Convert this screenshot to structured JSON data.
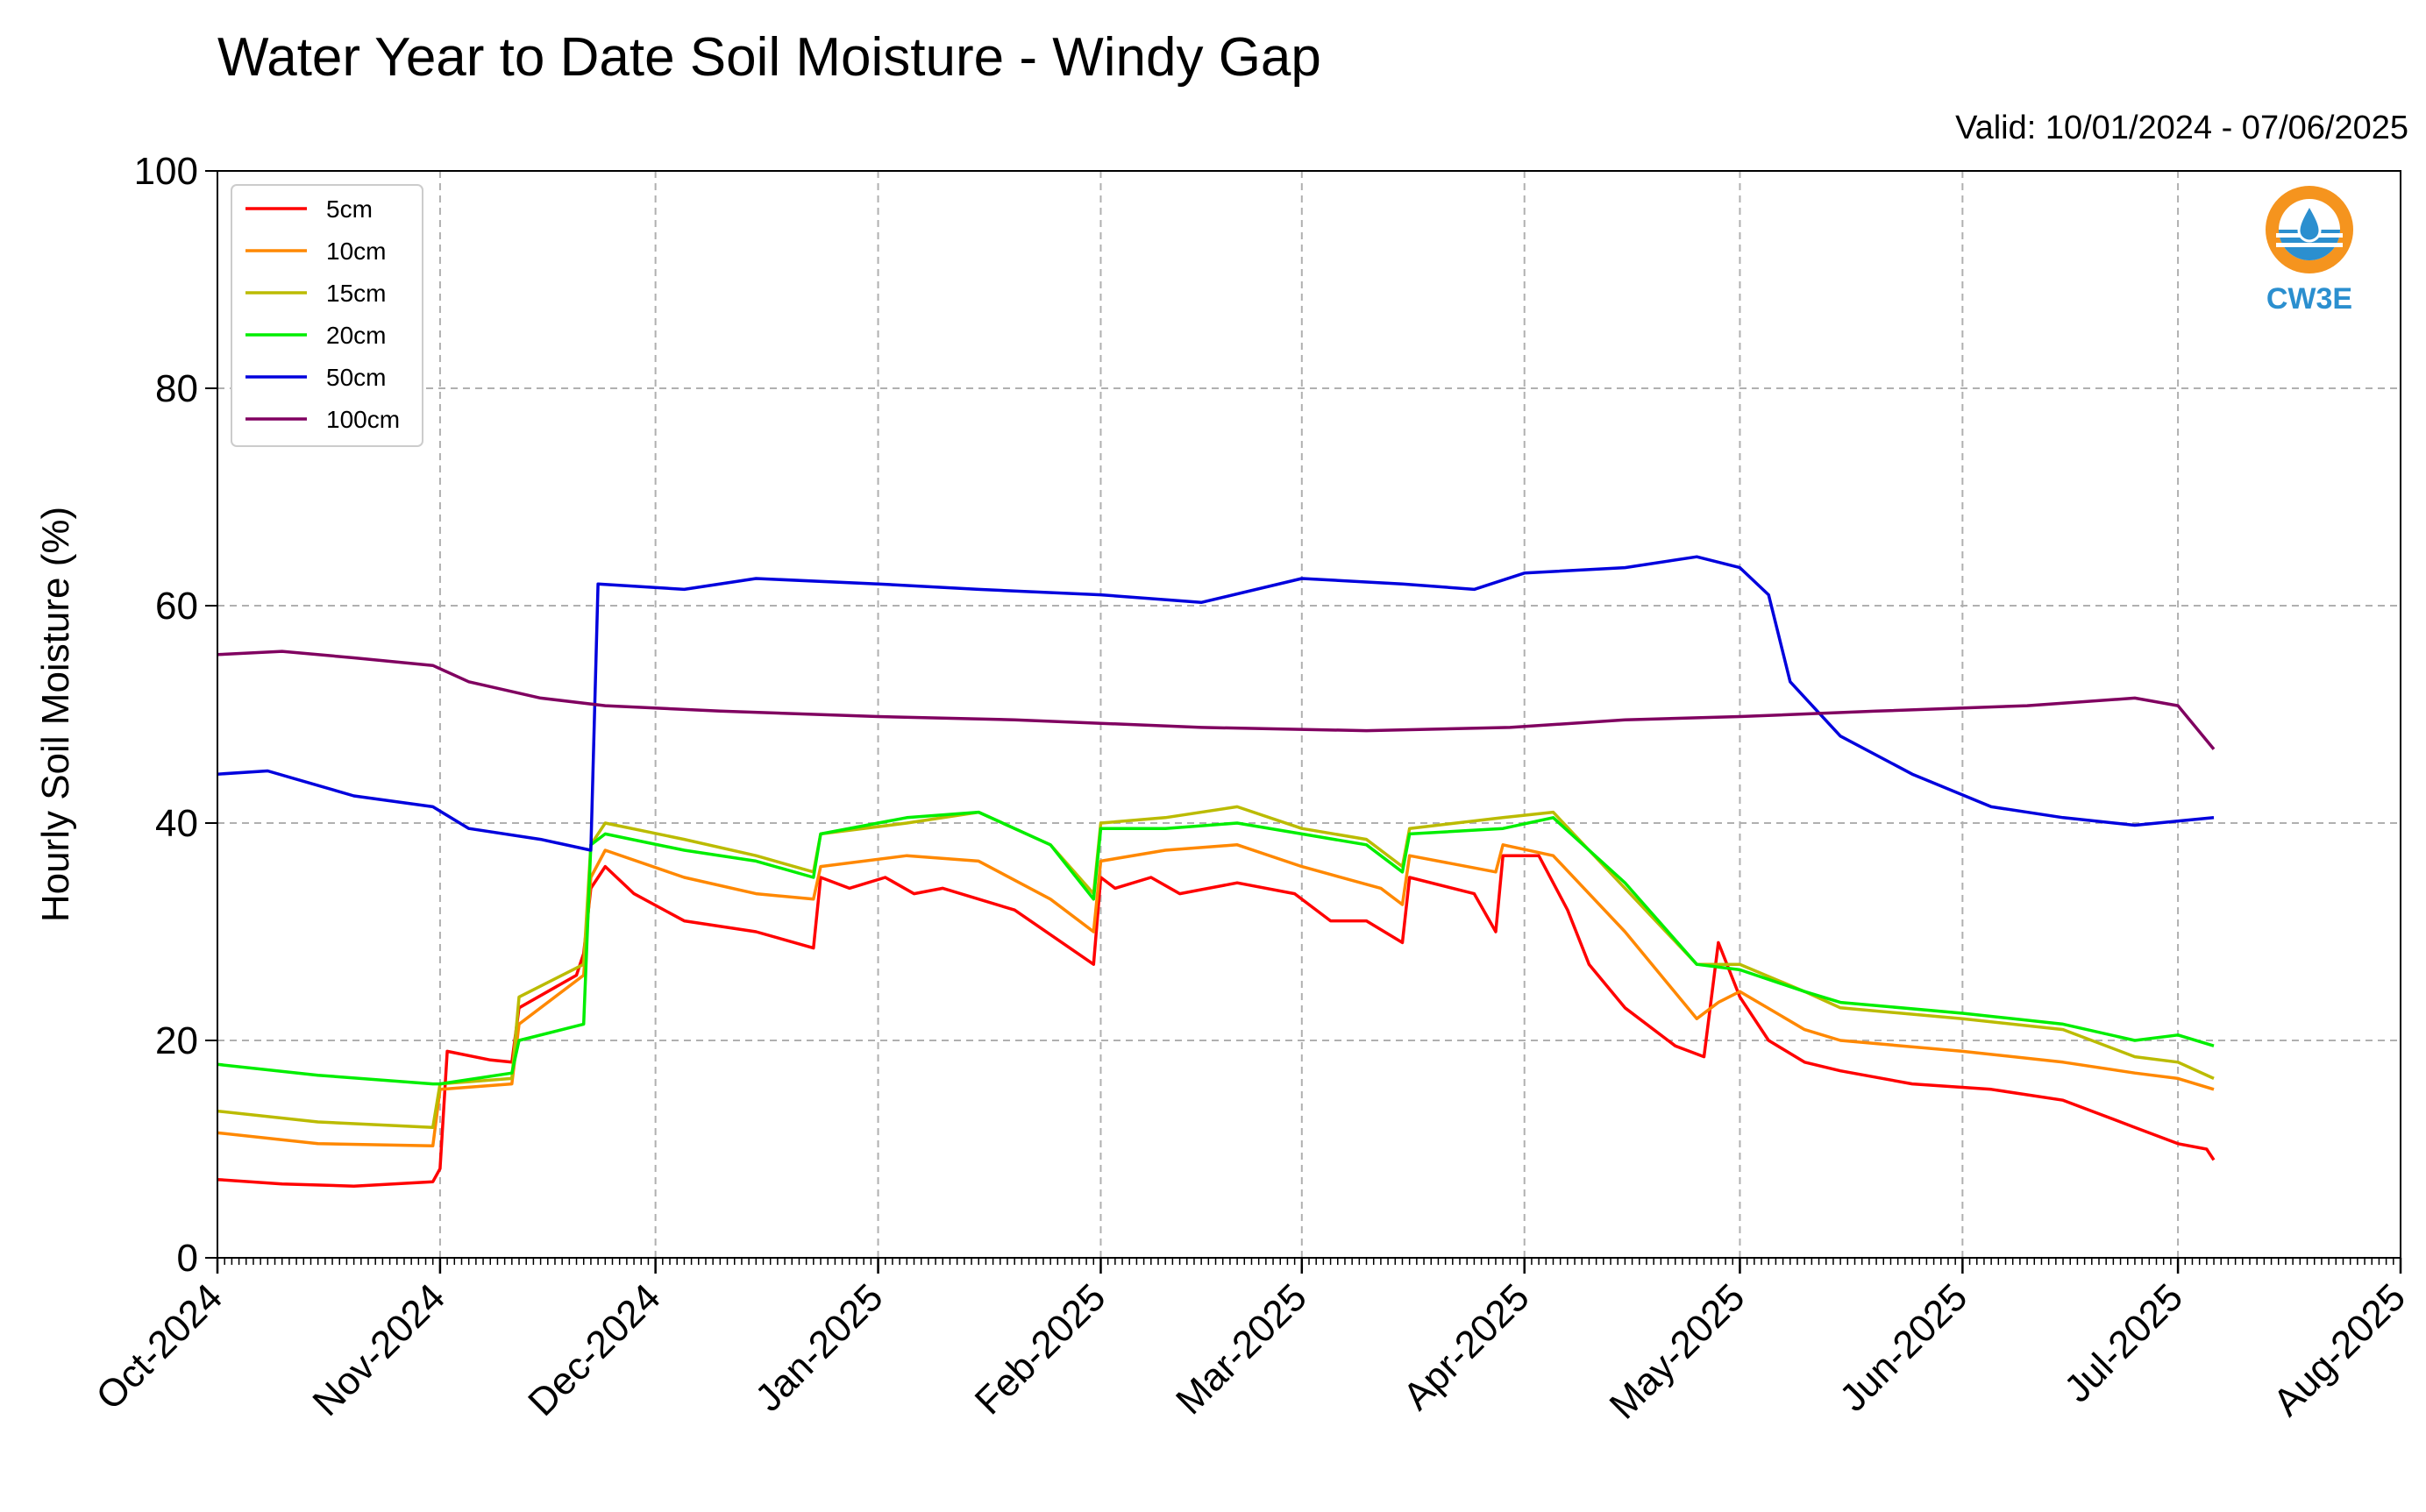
{
  "title": "Water Year to Date Soil Moisture - Windy Gap",
  "valid": "Valid: 10/01/2024 - 07/06/2025",
  "logo": {
    "text": "CW3E",
    "colors": {
      "orange": "#f5941e",
      "blue": "#2b8fcf"
    }
  },
  "chart_data": {
    "type": "line",
    "title": "Water Year to Date Soil Moisture - Windy Gap",
    "xlabel": "",
    "ylabel": "Hourly Soil Moisture (%)",
    "xlim": [
      "2024-10-01",
      "2025-08-01"
    ],
    "ylim": [
      0,
      100
    ],
    "yticks": [
      0,
      20,
      40,
      60,
      80,
      100
    ],
    "xticks": [
      {
        "date": "2024-10-01",
        "label": "Oct-2024"
      },
      {
        "date": "2024-11-01",
        "label": "Nov-2024"
      },
      {
        "date": "2024-12-01",
        "label": "Dec-2024"
      },
      {
        "date": "2025-01-01",
        "label": "Jan-2025"
      },
      {
        "date": "2025-02-01",
        "label": "Feb-2025"
      },
      {
        "date": "2025-03-01",
        "label": "Mar-2025"
      },
      {
        "date": "2025-04-01",
        "label": "Apr-2025"
      },
      {
        "date": "2025-05-01",
        "label": "May-2025"
      },
      {
        "date": "2025-06-01",
        "label": "Jun-2025"
      },
      {
        "date": "2025-07-01",
        "label": "Jul-2025"
      },
      {
        "date": "2025-08-01",
        "label": "Aug-2025"
      }
    ],
    "grid": true,
    "legend_position": "top-left",
    "series": [
      {
        "name": "5cm",
        "color": "#ff0000",
        "points": [
          [
            "2024-10-01",
            7.2
          ],
          [
            "2024-10-10",
            6.8
          ],
          [
            "2024-10-20",
            6.6
          ],
          [
            "2024-10-31",
            7.0
          ],
          [
            "2024-11-01",
            8.2
          ],
          [
            "2024-11-02",
            19.0
          ],
          [
            "2024-11-08",
            18.2
          ],
          [
            "2024-11-11",
            18.0
          ],
          [
            "2024-11-12",
            23.0
          ],
          [
            "2024-11-20",
            26.0
          ],
          [
            "2024-11-21",
            28.0
          ],
          [
            "2024-11-22",
            34.0
          ],
          [
            "2024-11-24",
            36.0
          ],
          [
            "2024-11-28",
            33.5
          ],
          [
            "2024-12-05",
            31.0
          ],
          [
            "2024-12-15",
            30.0
          ],
          [
            "2024-12-23",
            28.5
          ],
          [
            "2024-12-24",
            35.0
          ],
          [
            "2024-12-28",
            34.0
          ],
          [
            "2025-01-02",
            35.0
          ],
          [
            "2025-01-06",
            33.5
          ],
          [
            "2025-01-10",
            34.0
          ],
          [
            "2025-01-20",
            32.0
          ],
          [
            "2025-01-31",
            27.0
          ],
          [
            "2025-02-01",
            35.0
          ],
          [
            "2025-02-03",
            34.0
          ],
          [
            "2025-02-08",
            35.0
          ],
          [
            "2025-02-12",
            33.5
          ],
          [
            "2025-02-20",
            34.5
          ],
          [
            "2025-02-28",
            33.5
          ],
          [
            "2025-03-05",
            31.0
          ],
          [
            "2025-03-10",
            31.0
          ],
          [
            "2025-03-15",
            29.0
          ],
          [
            "2025-03-16",
            35.0
          ],
          [
            "2025-03-25",
            33.5
          ],
          [
            "2025-03-28",
            30.0
          ],
          [
            "2025-03-29",
            37.0
          ],
          [
            "2025-04-03",
            37.0
          ],
          [
            "2025-04-07",
            32.0
          ],
          [
            "2025-04-10",
            27.0
          ],
          [
            "2025-04-15",
            23.0
          ],
          [
            "2025-04-22",
            19.5
          ],
          [
            "2025-04-26",
            18.5
          ],
          [
            "2025-04-28",
            29.0
          ],
          [
            "2025-05-01",
            24.0
          ],
          [
            "2025-05-05",
            20.0
          ],
          [
            "2025-05-10",
            18.0
          ],
          [
            "2025-05-15",
            17.2
          ],
          [
            "2025-05-25",
            16.0
          ],
          [
            "2025-06-05",
            15.5
          ],
          [
            "2025-06-15",
            14.5
          ],
          [
            "2025-06-25",
            12.0
          ],
          [
            "2025-07-01",
            10.5
          ],
          [
            "2025-07-05",
            10.0
          ],
          [
            "2025-07-06",
            9.0
          ]
        ]
      },
      {
        "name": "10cm",
        "color": "#ff8800",
        "points": [
          [
            "2024-10-01",
            11.5
          ],
          [
            "2024-10-15",
            10.5
          ],
          [
            "2024-10-31",
            10.3
          ],
          [
            "2024-11-01",
            15.5
          ],
          [
            "2024-11-11",
            16.0
          ],
          [
            "2024-11-12",
            21.5
          ],
          [
            "2024-11-21",
            26.0
          ],
          [
            "2024-11-22",
            35.0
          ],
          [
            "2024-11-24",
            37.5
          ],
          [
            "2024-12-05",
            35.0
          ],
          [
            "2024-12-15",
            33.5
          ],
          [
            "2024-12-23",
            33.0
          ],
          [
            "2024-12-24",
            36.0
          ],
          [
            "2025-01-05",
            37.0
          ],
          [
            "2025-01-15",
            36.5
          ],
          [
            "2025-01-25",
            33.0
          ],
          [
            "2025-01-31",
            30.0
          ],
          [
            "2025-02-01",
            36.5
          ],
          [
            "2025-02-10",
            37.5
          ],
          [
            "2025-02-20",
            38.0
          ],
          [
            "2025-03-01",
            36.0
          ],
          [
            "2025-03-12",
            34.0
          ],
          [
            "2025-03-15",
            32.5
          ],
          [
            "2025-03-16",
            37.0
          ],
          [
            "2025-03-28",
            35.5
          ],
          [
            "2025-03-29",
            38.0
          ],
          [
            "2025-04-05",
            37.0
          ],
          [
            "2025-04-15",
            30.0
          ],
          [
            "2025-04-25",
            22.0
          ],
          [
            "2025-04-28",
            23.5
          ],
          [
            "2025-05-01",
            24.5
          ],
          [
            "2025-05-10",
            21.0
          ],
          [
            "2025-05-15",
            20.0
          ],
          [
            "2025-06-01",
            19.0
          ],
          [
            "2025-06-15",
            18.0
          ],
          [
            "2025-06-25",
            17.0
          ],
          [
            "2025-07-01",
            16.5
          ],
          [
            "2025-07-06",
            15.5
          ]
        ]
      },
      {
        "name": "15cm",
        "color": "#bbbb00",
        "points": [
          [
            "2024-10-01",
            13.5
          ],
          [
            "2024-10-15",
            12.5
          ],
          [
            "2024-10-31",
            12.0
          ],
          [
            "2024-11-01",
            16.0
          ],
          [
            "2024-11-11",
            16.5
          ],
          [
            "2024-11-12",
            24.0
          ],
          [
            "2024-11-21",
            27.0
          ],
          [
            "2024-11-22",
            38.0
          ],
          [
            "2024-11-24",
            40.0
          ],
          [
            "2024-12-05",
            38.5
          ],
          [
            "2024-12-15",
            37.0
          ],
          [
            "2024-12-23",
            35.5
          ],
          [
            "2024-12-24",
            39.0
          ],
          [
            "2025-01-05",
            40.0
          ],
          [
            "2025-01-15",
            41.0
          ],
          [
            "2025-01-25",
            38.0
          ],
          [
            "2025-01-31",
            33.5
          ],
          [
            "2025-02-01",
            40.0
          ],
          [
            "2025-02-10",
            40.5
          ],
          [
            "2025-02-20",
            41.5
          ],
          [
            "2025-03-01",
            39.5
          ],
          [
            "2025-03-10",
            38.5
          ],
          [
            "2025-03-15",
            36.0
          ],
          [
            "2025-03-16",
            39.5
          ],
          [
            "2025-03-29",
            40.5
          ],
          [
            "2025-04-05",
            41.0
          ],
          [
            "2025-04-15",
            34.0
          ],
          [
            "2025-04-25",
            27.0
          ],
          [
            "2025-05-01",
            27.0
          ],
          [
            "2025-05-10",
            24.5
          ],
          [
            "2025-05-15",
            23.0
          ],
          [
            "2025-06-01",
            22.0
          ],
          [
            "2025-06-15",
            21.0
          ],
          [
            "2025-06-25",
            18.5
          ],
          [
            "2025-07-01",
            18.0
          ],
          [
            "2025-07-06",
            16.5
          ]
        ]
      },
      {
        "name": "20cm",
        "color": "#00ee00",
        "points": [
          [
            "2024-10-01",
            17.8
          ],
          [
            "2024-10-15",
            16.8
          ],
          [
            "2024-10-31",
            16.0
          ],
          [
            "2024-11-01",
            16.0
          ],
          [
            "2024-11-11",
            17.0
          ],
          [
            "2024-11-12",
            20.0
          ],
          [
            "2024-11-21",
            21.5
          ],
          [
            "2024-11-22",
            38.0
          ],
          [
            "2024-11-24",
            39.0
          ],
          [
            "2024-12-05",
            37.5
          ],
          [
            "2024-12-15",
            36.5
          ],
          [
            "2024-12-23",
            35.0
          ],
          [
            "2024-12-24",
            39.0
          ],
          [
            "2025-01-05",
            40.5
          ],
          [
            "2025-01-15",
            41.0
          ],
          [
            "2025-01-25",
            38.0
          ],
          [
            "2025-01-31",
            33.0
          ],
          [
            "2025-02-01",
            39.5
          ],
          [
            "2025-02-10",
            39.5
          ],
          [
            "2025-02-20",
            40.0
          ],
          [
            "2025-03-01",
            39.0
          ],
          [
            "2025-03-10",
            38.0
          ],
          [
            "2025-03-15",
            35.5
          ],
          [
            "2025-03-16",
            39.0
          ],
          [
            "2025-03-29",
            39.5
          ],
          [
            "2025-04-05",
            40.5
          ],
          [
            "2025-04-15",
            34.5
          ],
          [
            "2025-04-25",
            27.0
          ],
          [
            "2025-05-01",
            26.5
          ],
          [
            "2025-05-10",
            24.5
          ],
          [
            "2025-05-15",
            23.5
          ],
          [
            "2025-06-01",
            22.5
          ],
          [
            "2025-06-15",
            21.5
          ],
          [
            "2025-06-25",
            20.0
          ],
          [
            "2025-07-01",
            20.5
          ],
          [
            "2025-07-06",
            19.5
          ]
        ]
      },
      {
        "name": "50cm",
        "color": "#0000dd",
        "points": [
          [
            "2024-10-01",
            44.5
          ],
          [
            "2024-10-08",
            44.8
          ],
          [
            "2024-10-20",
            42.5
          ],
          [
            "2024-10-31",
            41.5
          ],
          [
            "2024-11-05",
            39.5
          ],
          [
            "2024-11-15",
            38.5
          ],
          [
            "2024-11-22",
            37.5
          ],
          [
            "2024-11-23",
            62.0
          ],
          [
            "2024-12-05",
            61.5
          ],
          [
            "2024-12-15",
            62.5
          ],
          [
            "2025-01-01",
            62.0
          ],
          [
            "2025-01-15",
            61.5
          ],
          [
            "2025-02-01",
            61.0
          ],
          [
            "2025-02-15",
            60.3
          ],
          [
            "2025-03-01",
            62.5
          ],
          [
            "2025-03-15",
            62.0
          ],
          [
            "2025-03-25",
            61.5
          ],
          [
            "2025-04-01",
            63.0
          ],
          [
            "2025-04-15",
            63.5
          ],
          [
            "2025-04-25",
            64.5
          ],
          [
            "2025-05-01",
            63.5
          ],
          [
            "2025-05-05",
            61.0
          ],
          [
            "2025-05-08",
            53.0
          ],
          [
            "2025-05-15",
            48.0
          ],
          [
            "2025-05-25",
            44.5
          ],
          [
            "2025-06-05",
            41.5
          ],
          [
            "2025-06-15",
            40.5
          ],
          [
            "2025-06-25",
            39.8
          ],
          [
            "2025-07-06",
            40.5
          ]
        ]
      },
      {
        "name": "100cm",
        "color": "#800060",
        "points": [
          [
            "2024-10-01",
            55.5
          ],
          [
            "2024-10-10",
            55.8
          ],
          [
            "2024-10-20",
            55.2
          ],
          [
            "2024-10-31",
            54.5
          ],
          [
            "2024-11-05",
            53.0
          ],
          [
            "2024-11-15",
            51.5
          ],
          [
            "2024-11-24",
            50.8
          ],
          [
            "2024-12-10",
            50.3
          ],
          [
            "2025-01-01",
            49.8
          ],
          [
            "2025-01-20",
            49.5
          ],
          [
            "2025-02-15",
            48.8
          ],
          [
            "2025-03-10",
            48.5
          ],
          [
            "2025-03-30",
            48.8
          ],
          [
            "2025-04-15",
            49.5
          ],
          [
            "2025-05-01",
            49.8
          ],
          [
            "2025-05-20",
            50.3
          ],
          [
            "2025-06-10",
            50.8
          ],
          [
            "2025-06-25",
            51.5
          ],
          [
            "2025-07-01",
            50.8
          ],
          [
            "2025-07-06",
            46.8
          ]
        ]
      }
    ]
  }
}
